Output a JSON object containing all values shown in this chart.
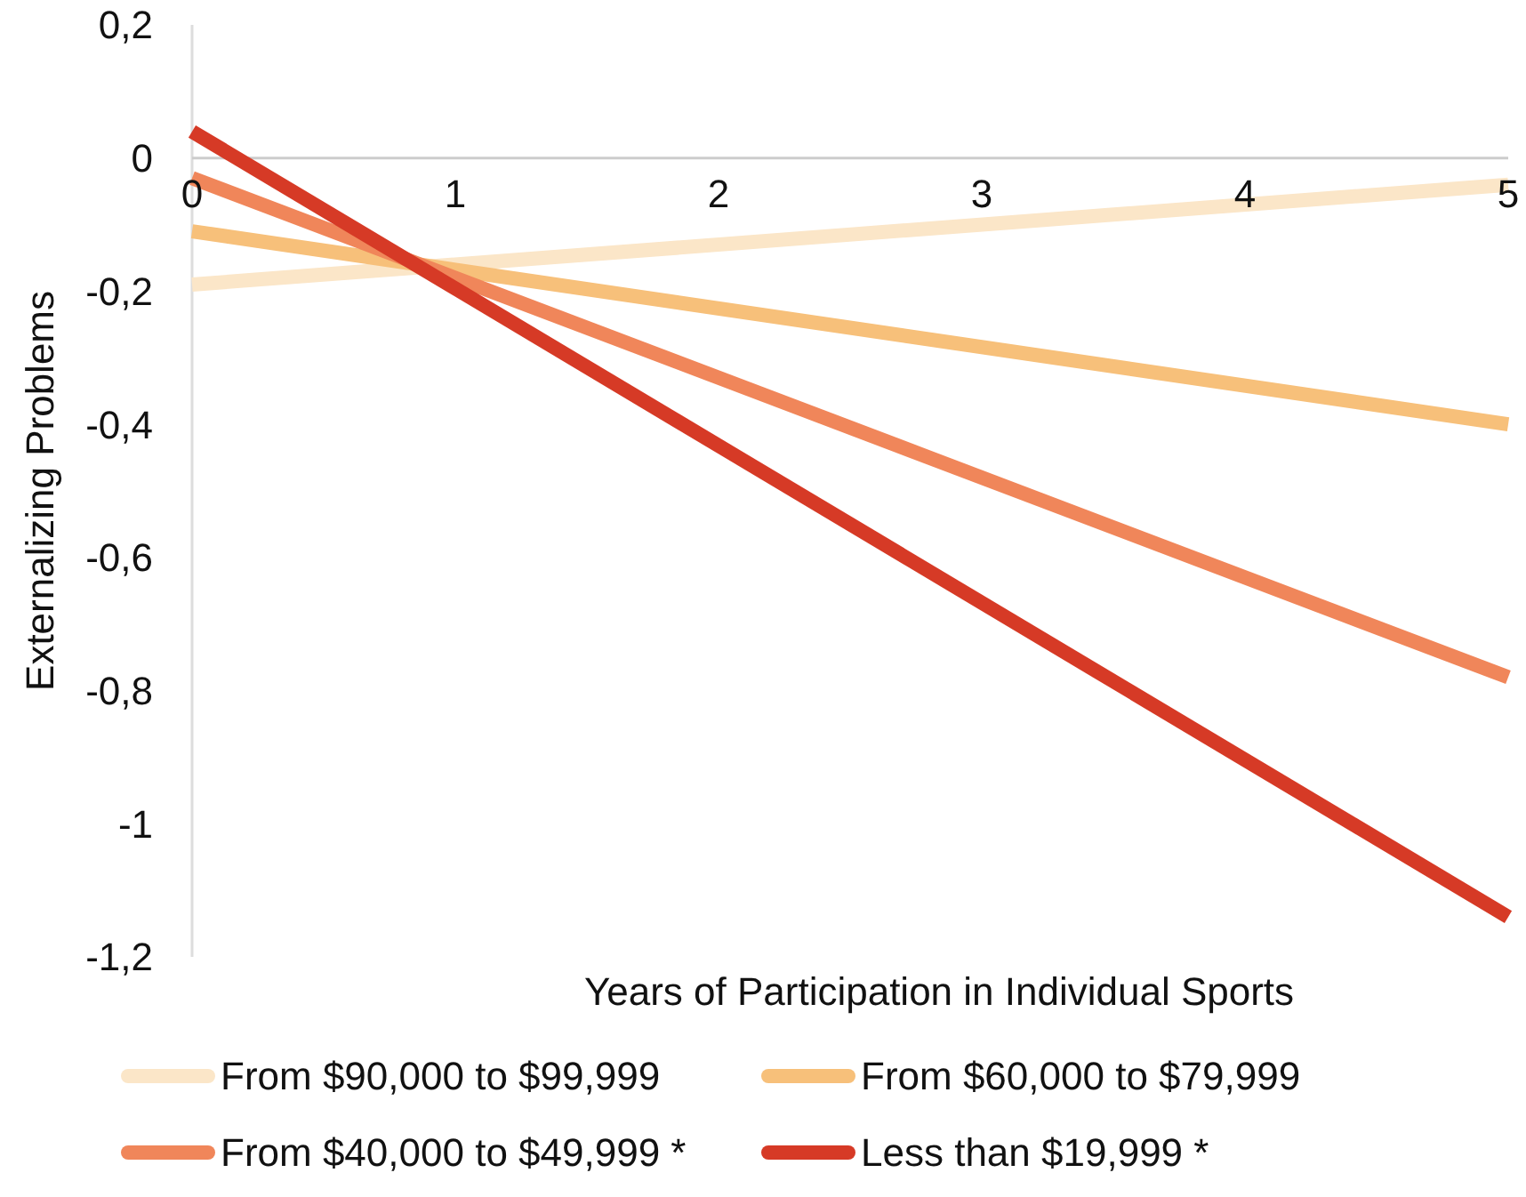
{
  "chart_data": {
    "type": "line",
    "xlabel": "Years of Participation in Individual Sports",
    "ylabel": "Externalizing Problems",
    "x": [
      0,
      5
    ],
    "series": [
      {
        "name": "From $90,000 to $99,999",
        "color": "#fbe6c8",
        "values": [
          -0.19,
          -0.04
        ]
      },
      {
        "name": "From $60,000 to $79,999",
        "color": "#f7c07a",
        "values": [
          -0.11,
          -0.4
        ]
      },
      {
        "name": "From $40,000 to $49,999 *",
        "color": "#f0865a",
        "values": [
          -0.03,
          -0.78
        ]
      },
      {
        "name": "Less than $19,999 *",
        "color": "#d63a26",
        "values": [
          0.04,
          -1.14
        ]
      }
    ],
    "xlim": [
      0,
      5
    ],
    "xticks": [
      0,
      1,
      2,
      3,
      4,
      5
    ],
    "ylim": [
      -1.2,
      0.2
    ],
    "yticks": [
      {
        "value": -1.2,
        "label": "-1,2"
      },
      {
        "value": -1,
        "label": "-1"
      },
      {
        "value": -0.8,
        "label": "-0,8"
      },
      {
        "value": -0.6,
        "label": "-0,6"
      },
      {
        "value": -0.4,
        "label": "-0,4"
      },
      {
        "value": -0.2,
        "label": "-0,2"
      },
      {
        "value": 0,
        "label": "0"
      },
      {
        "value": 0.2,
        "label": "0,2"
      }
    ],
    "grid": false,
    "legend": "bottom",
    "marker": "none",
    "line_style": "solid"
  }
}
